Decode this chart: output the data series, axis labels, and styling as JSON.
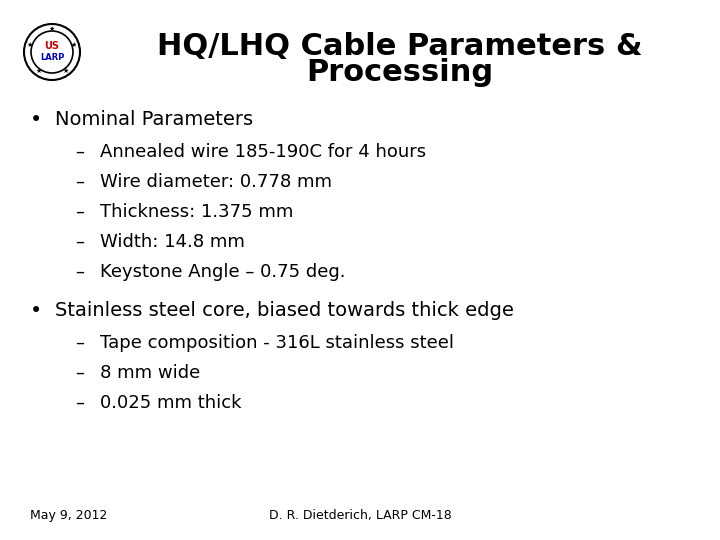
{
  "title_line1": "HQ/LHQ Cable Parameters &",
  "title_line2": "Processing",
  "title_fontsize": 22,
  "bg_color": "#ffffff",
  "text_color": "#000000",
  "bullet1": "Nominal Parameters",
  "bullet1_items": [
    "Annealed wire 185-190C for 4 hours",
    "Wire diameter: 0.778 mm",
    "Thickness: 1.375 mm",
    "Width: 14.8 mm",
    "Keystone Angle – 0.75 deg."
  ],
  "bullet2": "Stainless steel core, biased towards thick edge",
  "bullet2_items": [
    "Tape composition - 316L stainless steel",
    "8 mm wide",
    "0.025 mm thick"
  ],
  "footer_left": "May 9, 2012",
  "footer_right": "D. R. Dietderich, LARP CM-18",
  "bullet_fontsize": 14,
  "sub_fontsize": 13,
  "footer_fontsize": 9,
  "logo_us_color": "#cc0000",
  "logo_larp_color": "#0000cc",
  "logo_border_color": "#000000"
}
